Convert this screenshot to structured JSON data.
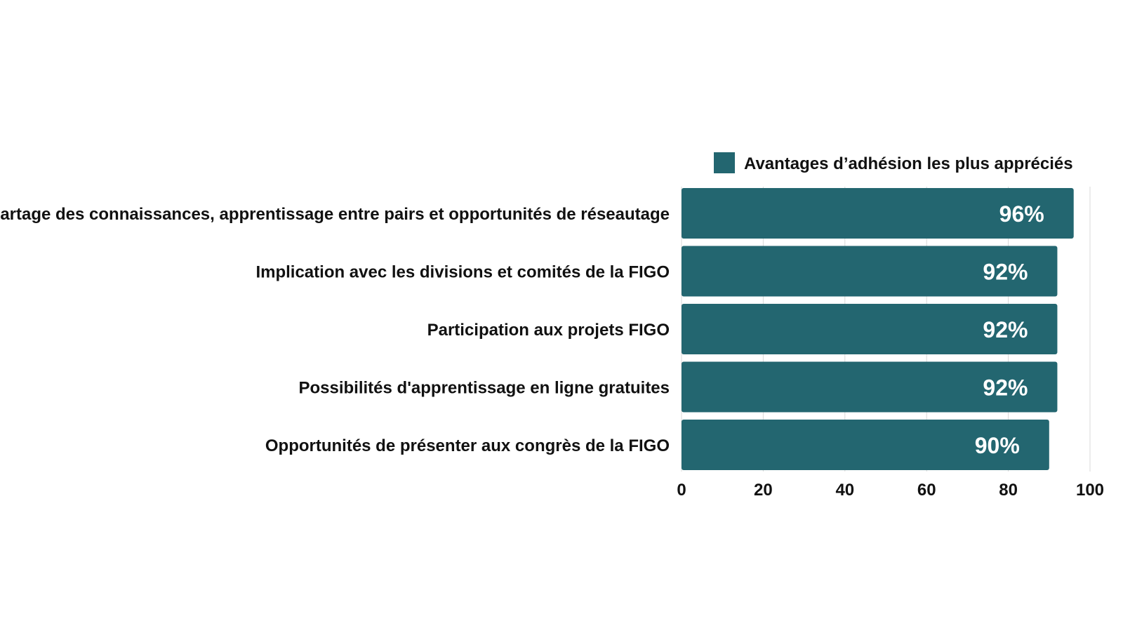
{
  "chart_data": {
    "type": "bar",
    "orientation": "horizontal",
    "categories": [
      "Partage des connaissances, apprentissage entre pairs et opportunités de réseautage",
      "Implication avec les divisions et comités de la FIGO",
      "Participation aux projets FIGO",
      "Possibilités d'apprentissage en ligne gratuites",
      "Opportunités de présenter aux congrès de la FIGO"
    ],
    "series": [
      {
        "name": "Avantages d’adhésion les plus appréciés",
        "values": [
          96,
          92,
          92,
          92,
          90
        ],
        "data_labels": [
          "96%",
          "92%",
          "92%",
          "92%",
          "90%"
        ],
        "color": "#236670"
      }
    ],
    "x_ticks": [
      "0",
      "20",
      "40",
      "60",
      "80",
      "100"
    ],
    "xlim": [
      0,
      100
    ],
    "grid": true,
    "legend_position": "top-right",
    "title": "",
    "xlabel": "",
    "ylabel": ""
  }
}
